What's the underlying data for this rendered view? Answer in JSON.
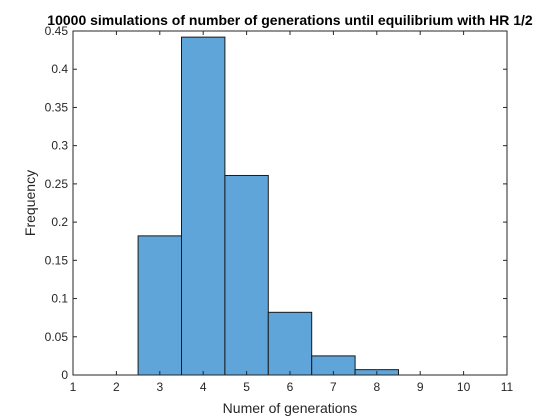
{
  "chart_data": {
    "type": "bar",
    "title": "10000 simulations of number of generations until equilibrium with HR 1/2",
    "xlabel": "Numer of generations",
    "ylabel": "Frequency",
    "xlim": [
      1,
      11
    ],
    "ylim": [
      0,
      0.45
    ],
    "xticks": [
      "1",
      "2",
      "3",
      "4",
      "5",
      "6",
      "7",
      "8",
      "9",
      "10",
      "11"
    ],
    "yticks": [
      "0",
      "0.05",
      "0.1",
      "0.15",
      "0.2",
      "0.25",
      "0.3",
      "0.35",
      "0.4",
      "0.45"
    ],
    "bins": [
      {
        "x": 3,
        "value": 0.182
      },
      {
        "x": 4,
        "value": 0.442
      },
      {
        "x": 5,
        "value": 0.261
      },
      {
        "x": 6,
        "value": 0.082
      },
      {
        "x": 7,
        "value": 0.025
      },
      {
        "x": 8,
        "value": 0.007
      }
    ],
    "bar_width": 1,
    "bar_color": "#5fa5d9",
    "edge_color": "#1a1a1a",
    "grid": false,
    "box": true
  }
}
